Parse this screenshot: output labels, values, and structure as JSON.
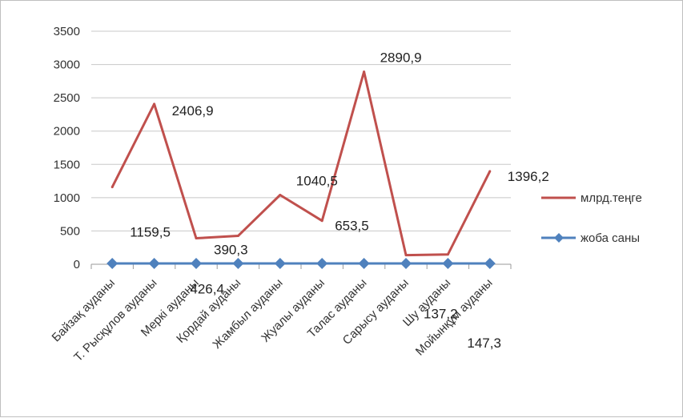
{
  "chart_data": {
    "type": "line",
    "categories": [
      "Байзақ ауданы",
      "Т. Рысқұлов ауданы",
      "Меркі ауданы",
      "Қордай ауданы",
      "Жамбыл ауданы",
      "Жуалы ауданы",
      "Талас ауданы",
      "Сарысу ауданы",
      "Шу ауданы",
      "Мойынқұм ауданы"
    ],
    "series": [
      {
        "name": "млрд.теңге",
        "color": "#c0504d",
        "values": [
          1159.5,
          2406.9,
          390.3,
          426.4,
          1040.5,
          653.5,
          2890.9,
          137.2,
          147.3,
          1396.2
        ],
        "labels": [
          "1159,5",
          "2406,9",
          "390,3",
          "426,4",
          "1040,5",
          "653,5",
          "2890,9",
          "137,2",
          "147,3",
          "1396,2"
        ]
      },
      {
        "name": "жоба саны",
        "color": "#4f81bd",
        "marker": "diamond",
        "values": [
          12,
          12,
          12,
          12,
          12,
          12,
          12,
          12,
          12,
          12
        ]
      }
    ],
    "ylim": [
      0,
      3500
    ],
    "yticks": [
      "0",
      "500",
      "1000",
      "1500",
      "2000",
      "2500",
      "3000",
      "3500"
    ],
    "grid": true,
    "legend_position": "right"
  }
}
